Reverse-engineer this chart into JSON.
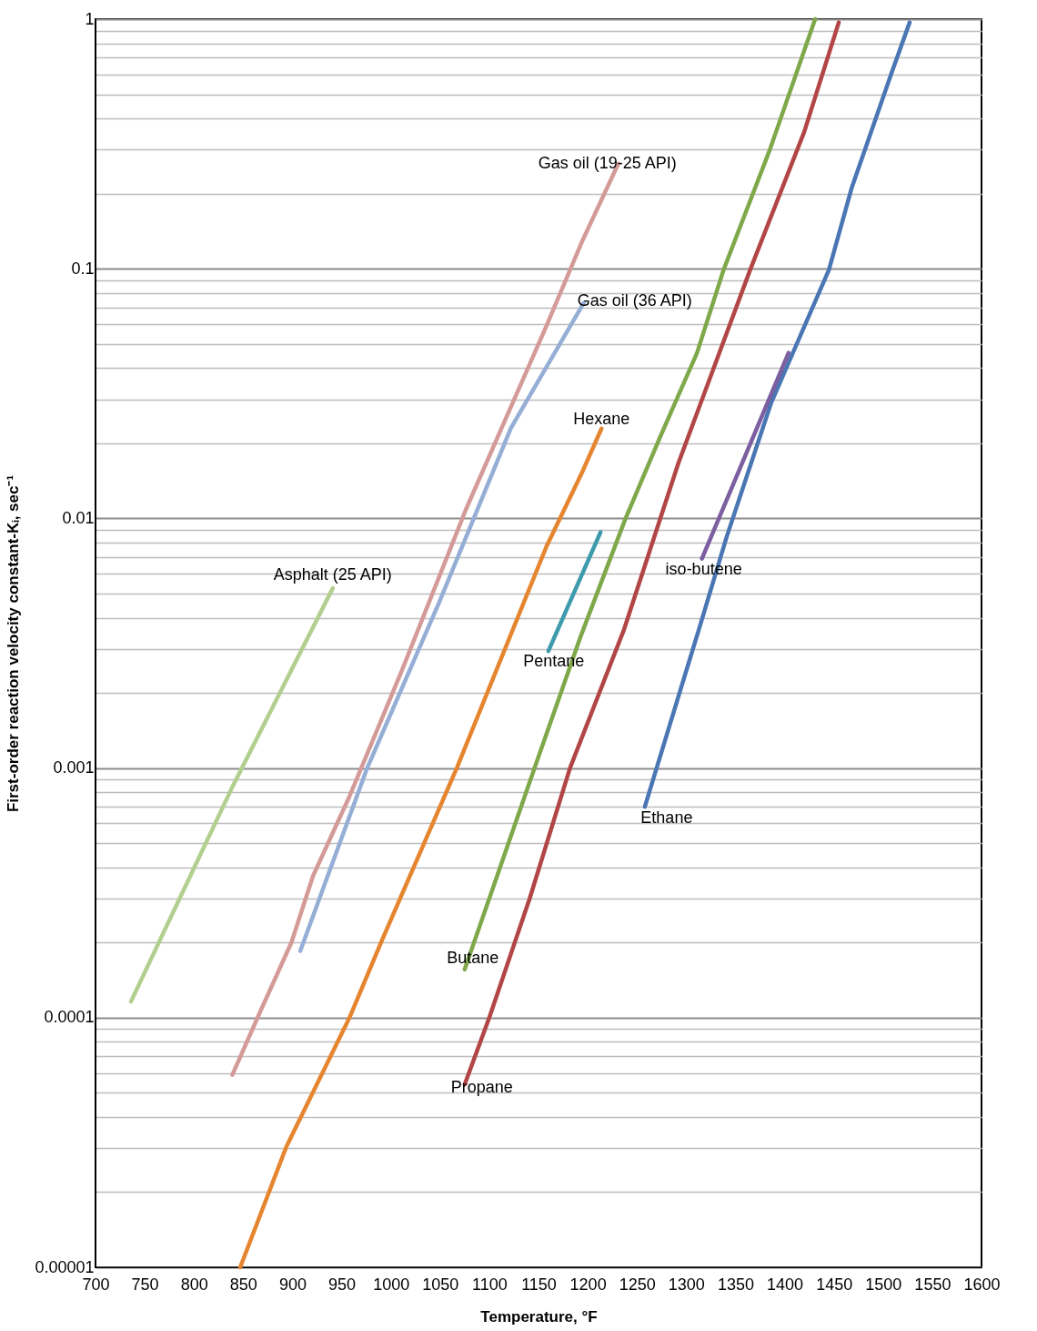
{
  "chart_data": {
    "type": "line",
    "xlabel": "Temperature, °F",
    "ylabel": "First-order reaction velocity constant-Kᵢ, sec⁻¹",
    "log": "y",
    "grid": "y",
    "marker": "none",
    "line_style": "solid",
    "xlim": [
      700,
      1600
    ],
    "xticks": [
      700,
      750,
      800,
      850,
      900,
      950,
      1000,
      1050,
      1100,
      1150,
      1200,
      1250,
      1300,
      1350,
      1400,
      1450,
      1500,
      1550,
      1600
    ],
    "ylim": [
      1e-05,
      1
    ],
    "yticks": [
      {
        "value": 1e-05,
        "label": "0.00001"
      },
      {
        "value": 2e-05,
        "label": null
      },
      {
        "value": 3e-05,
        "label": null
      },
      {
        "value": 4e-05,
        "label": null
      },
      {
        "value": 5e-05,
        "label": null
      },
      {
        "value": 6e-05,
        "label": null
      },
      {
        "value": 7e-05,
        "label": null
      },
      {
        "value": 8e-05,
        "label": null
      },
      {
        "value": 9e-05,
        "label": null
      },
      0.0001,
      {
        "value": 0.0002,
        "label": null
      },
      {
        "value": 0.0003,
        "label": null
      },
      {
        "value": 0.0004,
        "label": null
      },
      {
        "value": 0.0005,
        "label": null
      },
      {
        "value": 0.0006,
        "label": null
      },
      {
        "value": 0.0007,
        "label": null
      },
      {
        "value": 0.0008,
        "label": null
      },
      {
        "value": 0.0009,
        "label": null
      },
      0.001,
      {
        "value": 0.002,
        "label": null
      },
      {
        "value": 0.003,
        "label": null
      },
      {
        "value": 0.004,
        "label": null
      },
      {
        "value": 0.005,
        "label": null
      },
      {
        "value": 0.006,
        "label": null
      },
      {
        "value": 0.007,
        "label": null
      },
      {
        "value": 0.008,
        "label": null
      },
      {
        "value": 0.009,
        "label": null
      },
      0.01,
      {
        "value": 0.02,
        "label": null
      },
      {
        "value": 0.03,
        "label": null
      },
      {
        "value": 0.04,
        "label": null
      },
      {
        "value": 0.05,
        "label": null
      },
      {
        "value": 0.06,
        "label": null
      },
      {
        "value": 0.07,
        "label": null
      },
      {
        "value": 0.08,
        "label": null
      },
      {
        "value": 0.09,
        "label": null
      },
      0.1,
      {
        "value": 0.2,
        "label": null
      },
      {
        "value": 0.3,
        "label": null
      },
      {
        "value": 0.4,
        "label": null
      },
      {
        "value": 0.5,
        "label": null
      },
      {
        "value": 0.6,
        "label": null
      },
      {
        "value": 0.7,
        "label": null
      },
      {
        "value": 0.8,
        "label": null
      },
      {
        "value": 0.9,
        "label": null
      },
      1
    ],
    "series": [
      {
        "name": "Asphalt (25 API)",
        "color": "#b3cf8f",
        "x": [
          736,
          839,
          941
        ],
        "values": [
          0.000116,
          0.00084,
          0.00525
        ]
      },
      {
        "name": "Gas oil (19-25 API)",
        "color": "#d49a98",
        "x": [
          839,
          867,
          899,
          921,
          958,
          1012,
          1076,
          1158,
          1194,
          1231
        ],
        "values": [
          5.9e-05,
          0.000105,
          0.0002,
          0.00037,
          0.00077,
          0.0025,
          0.0108,
          0.059,
          0.128,
          0.263
        ]
      },
      {
        "name": "Gas oil (36 API)",
        "color": "#95aed5",
        "x": [
          908,
          976,
          1049,
          1122,
          1196
        ],
        "values": [
          0.000185,
          0.001,
          0.0046,
          0.023,
          0.073
        ]
      },
      {
        "name": "Hexane",
        "color": "#e5852f",
        "x": [
          847,
          894,
          958,
          990,
          1067,
          1158,
          1194,
          1214
        ],
        "values": [
          1e-05,
          3.05e-05,
          0.0001,
          0.0002,
          0.001,
          0.0077,
          0.0152,
          0.0229
        ]
      },
      {
        "name": "Pentane",
        "color": "#3e9aad",
        "x": [
          1160,
          1213
        ],
        "values": [
          0.00294,
          0.0088
        ]
      },
      {
        "name": "Butane",
        "color": "#7fa84b",
        "x": [
          1075,
          1110,
          1146,
          1192,
          1238,
          1274,
          1311,
          1338,
          1385,
          1431
        ],
        "values": [
          0.000156,
          0.00039,
          0.001,
          0.0033,
          0.0099,
          0.0214,
          0.046,
          0.099,
          0.3,
          1
        ]
      },
      {
        "name": "Propane",
        "color": "#b24545",
        "x": [
          1075,
          1100,
          1141,
          1182,
          1237,
          1292,
          1365,
          1420,
          1455
        ],
        "values": [
          5.4e-05,
          0.0001,
          0.0003,
          0.001,
          0.0036,
          0.0166,
          0.099,
          0.354,
          0.97
        ]
      },
      {
        "name": "Ethane",
        "color": "#4a76b3",
        "x": [
          1258,
          1313,
          1341,
          1386,
          1445,
          1468,
          1509,
          1527
        ],
        "values": [
          0.0007,
          0.0036,
          0.0084,
          0.0288,
          0.099,
          0.21,
          0.615,
          0.97
        ]
      },
      {
        "name": "iso-butene",
        "color": "#7b5fa0",
        "x": [
          1316,
          1404
        ],
        "values": [
          0.0069,
          0.046
        ]
      }
    ]
  }
}
